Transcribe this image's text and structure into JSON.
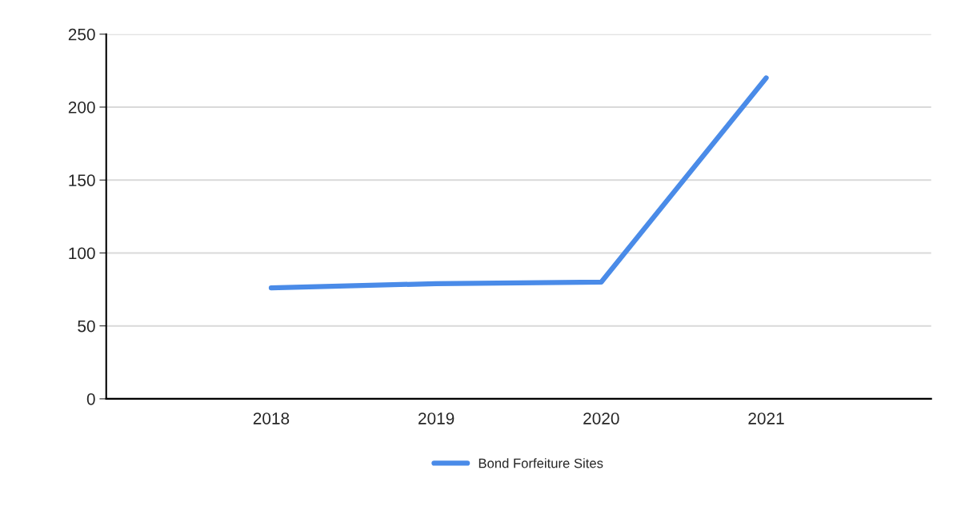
{
  "chart_data": {
    "type": "line",
    "categories": [
      "2018",
      "2019",
      "2020",
      "2021"
    ],
    "series": [
      {
        "name": "Bond Forfeiture Sites",
        "color": "#4a8be8",
        "values": [
          76,
          79,
          80,
          220
        ]
      }
    ],
    "ylim": [
      0,
      250
    ],
    "yticks": [
      0,
      50,
      100,
      150,
      200,
      250
    ],
    "grid": "y",
    "legend": "bottom",
    "marker": "none",
    "line_style": "solid"
  }
}
